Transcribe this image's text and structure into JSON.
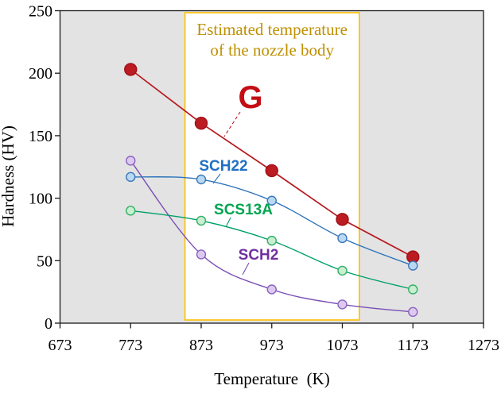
{
  "figure": {
    "background": "#ffffff",
    "plot_bg": "#e3e3e3",
    "frame_color": "#1a1a1a",
    "tick_label_color": "#000000"
  },
  "chart_data": {
    "type": "line",
    "title": "",
    "xlabel": "Temperature  (K)",
    "ylabel": "Hardness (HV)",
    "x_ticks": [
      "673",
      "773",
      "873",
      "973",
      "1073",
      "1173",
      "1273"
    ],
    "y_ticks": [
      "0",
      "50",
      "100",
      "150",
      "200",
      "250"
    ],
    "xlim": [
      673,
      1273
    ],
    "ylim": [
      0,
      250
    ],
    "grid": false,
    "x": [
      773,
      873,
      973,
      1073,
      1173
    ],
    "series": [
      {
        "name": "SCH2",
        "values": [
          130,
          55,
          27,
          15,
          9
        ],
        "line_color": "#7a4fb5",
        "line_style": "smooth",
        "marker_fill": "#ddc9ef",
        "marker_stroke": "#8a63c0",
        "marker_r": 5.5,
        "label_color": "#7030a0"
      },
      {
        "name": "SCS13A",
        "values": [
          90,
          82,
          66,
          42,
          27
        ],
        "line_color": "#00a169",
        "line_style": "smooth",
        "marker_fill": "#c9eed2",
        "marker_stroke": "#33b065",
        "marker_r": 5.5,
        "label_color": "#00a550"
      },
      {
        "name": "SCH22",
        "values": [
          117,
          115,
          98,
          68,
          46
        ],
        "line_color": "#2d74ba",
        "line_style": "smooth",
        "marker_fill": "#b9d8f2",
        "marker_stroke": "#3a78bb",
        "marker_r": 5.5,
        "label_color": "#2170c4"
      },
      {
        "name": "G",
        "values": [
          203,
          160,
          122,
          83,
          53
        ],
        "line_color": "#b5191f",
        "line_style": "straight",
        "marker_fill": "#bb1b21",
        "marker_stroke": "#9e1116",
        "marker_r": 7.5,
        "label_color": "#c40d15"
      }
    ],
    "annotation": {
      "text_lines": [
        "Estimated temperature",
        "of the nozzle body"
      ],
      "text_color": "#bf9000",
      "border_color": "#ffc000",
      "fill": "#ffffff",
      "x_range_k": [
        850,
        1097
      ]
    }
  }
}
